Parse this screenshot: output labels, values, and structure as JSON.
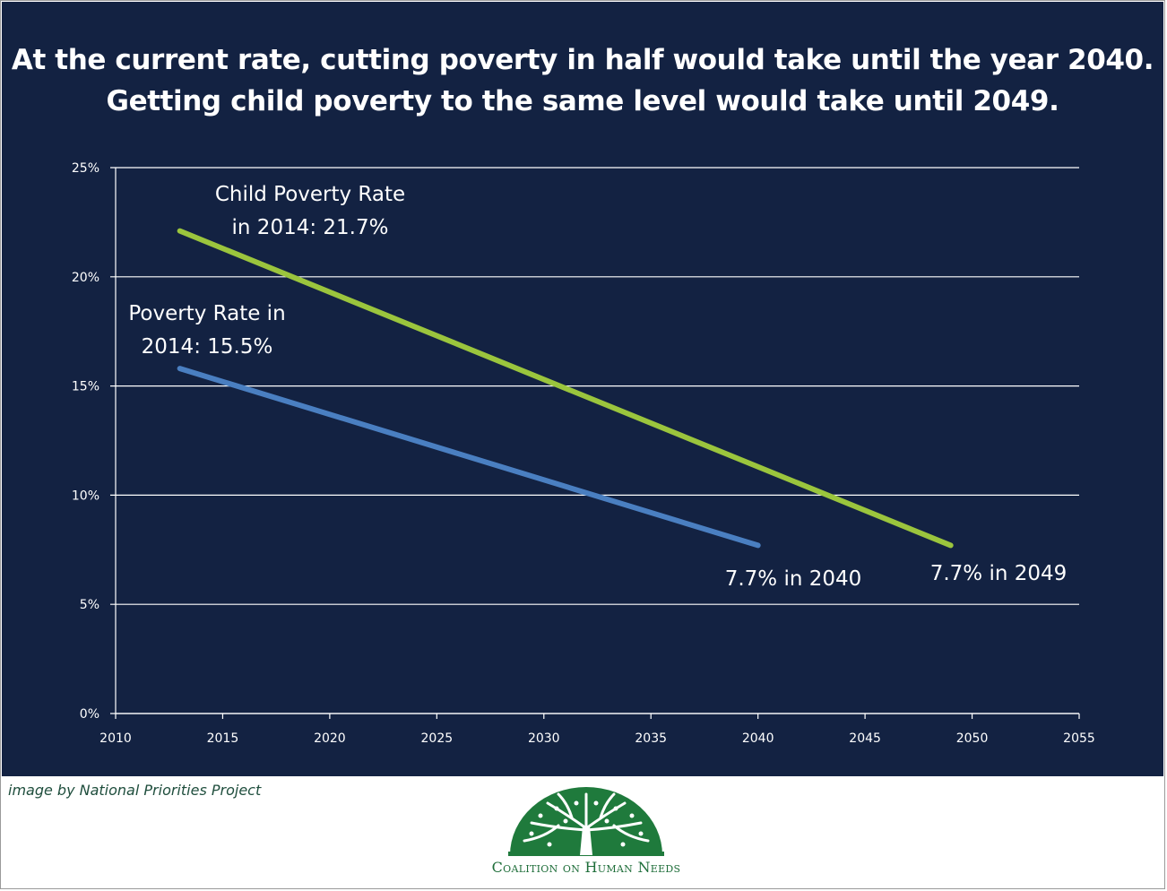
{
  "title_lines": [
    "At the current rate, cutting poverty in half would take until the year 2040.",
    "Getting child poverty to the same level would take until 2049."
  ],
  "chart_data": {
    "type": "line",
    "x_range": [
      2010,
      2055
    ],
    "y_range": [
      0,
      25
    ],
    "x_ticks": [
      "2010",
      "2015",
      "2020",
      "2025",
      "2030",
      "2035",
      "2040",
      "2045",
      "2050",
      "2055"
    ],
    "y_ticks": [
      "0%",
      "5%",
      "10%",
      "15%",
      "20%",
      "25%"
    ],
    "grid": "horizontal",
    "series": [
      {
        "color": "#9bc53d",
        "x": [
          2013,
          2049
        ],
        "y": [
          22.1,
          7.7
        ]
      },
      {
        "color": "#4a7fc1",
        "x": [
          2013,
          2040
        ],
        "y": [
          15.8,
          7.7
        ]
      }
    ],
    "annotations": [
      {
        "lines": [
          "Child Poverty Rate",
          "in 2014: 21.7%"
        ]
      },
      {
        "lines": [
          "Poverty Rate in",
          "2014: 15.5%"
        ]
      },
      {
        "lines": [
          "7.7% in 2040"
        ]
      },
      {
        "lines": [
          "7.7% in 2049"
        ]
      }
    ]
  },
  "credit": "image by National Priorities Project",
  "logo": {
    "icon": "tree-icon",
    "org_name": "Coalition on Human Needs",
    "color": "#1f7a3c"
  },
  "colors": {
    "background": "#132242",
    "text": "#ffffff",
    "grid": "#ffffff"
  }
}
